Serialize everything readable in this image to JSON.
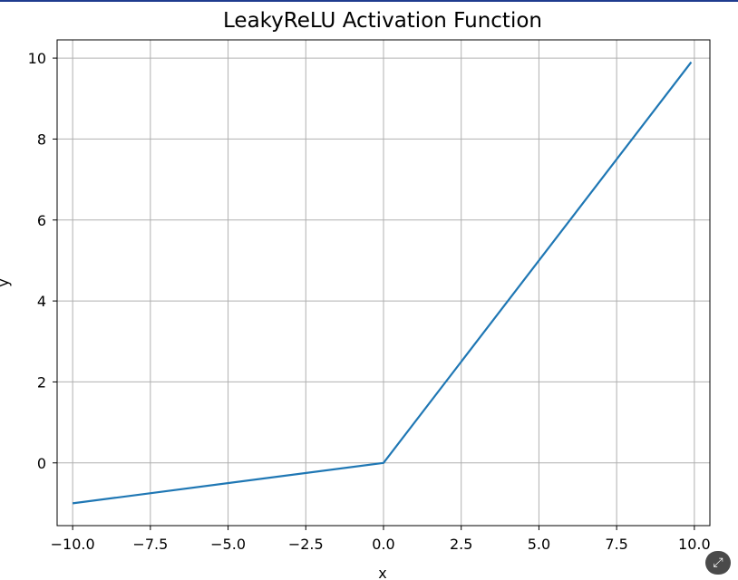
{
  "chart_data": {
    "type": "line",
    "title": "LeakyReLU Activation Function",
    "xlabel": "x",
    "ylabel": "y",
    "xlim": [
      -10.5,
      10.5
    ],
    "ylim": [
      -1.55,
      10.45
    ],
    "grid": true,
    "x_ticks": [
      -10,
      -7.5,
      -5,
      -2.5,
      0,
      2.5,
      5,
      7.5,
      10
    ],
    "x_tick_labels": [
      "−10.0",
      "−7.5",
      "−5.0",
      "−2.5",
      "0.0",
      "2.5",
      "5.0",
      "7.5",
      "10.0"
    ],
    "y_ticks": [
      0,
      2,
      4,
      6,
      8,
      10
    ],
    "y_tick_labels": [
      "0",
      "2",
      "4",
      "6",
      "8",
      "10"
    ],
    "series": [
      {
        "color": "#1f77b4",
        "x": [
          -10,
          0,
          9.9
        ],
        "y": [
          -1,
          0,
          9.9
        ]
      }
    ]
  },
  "ui": {
    "expand_icon": "expand-icon"
  }
}
